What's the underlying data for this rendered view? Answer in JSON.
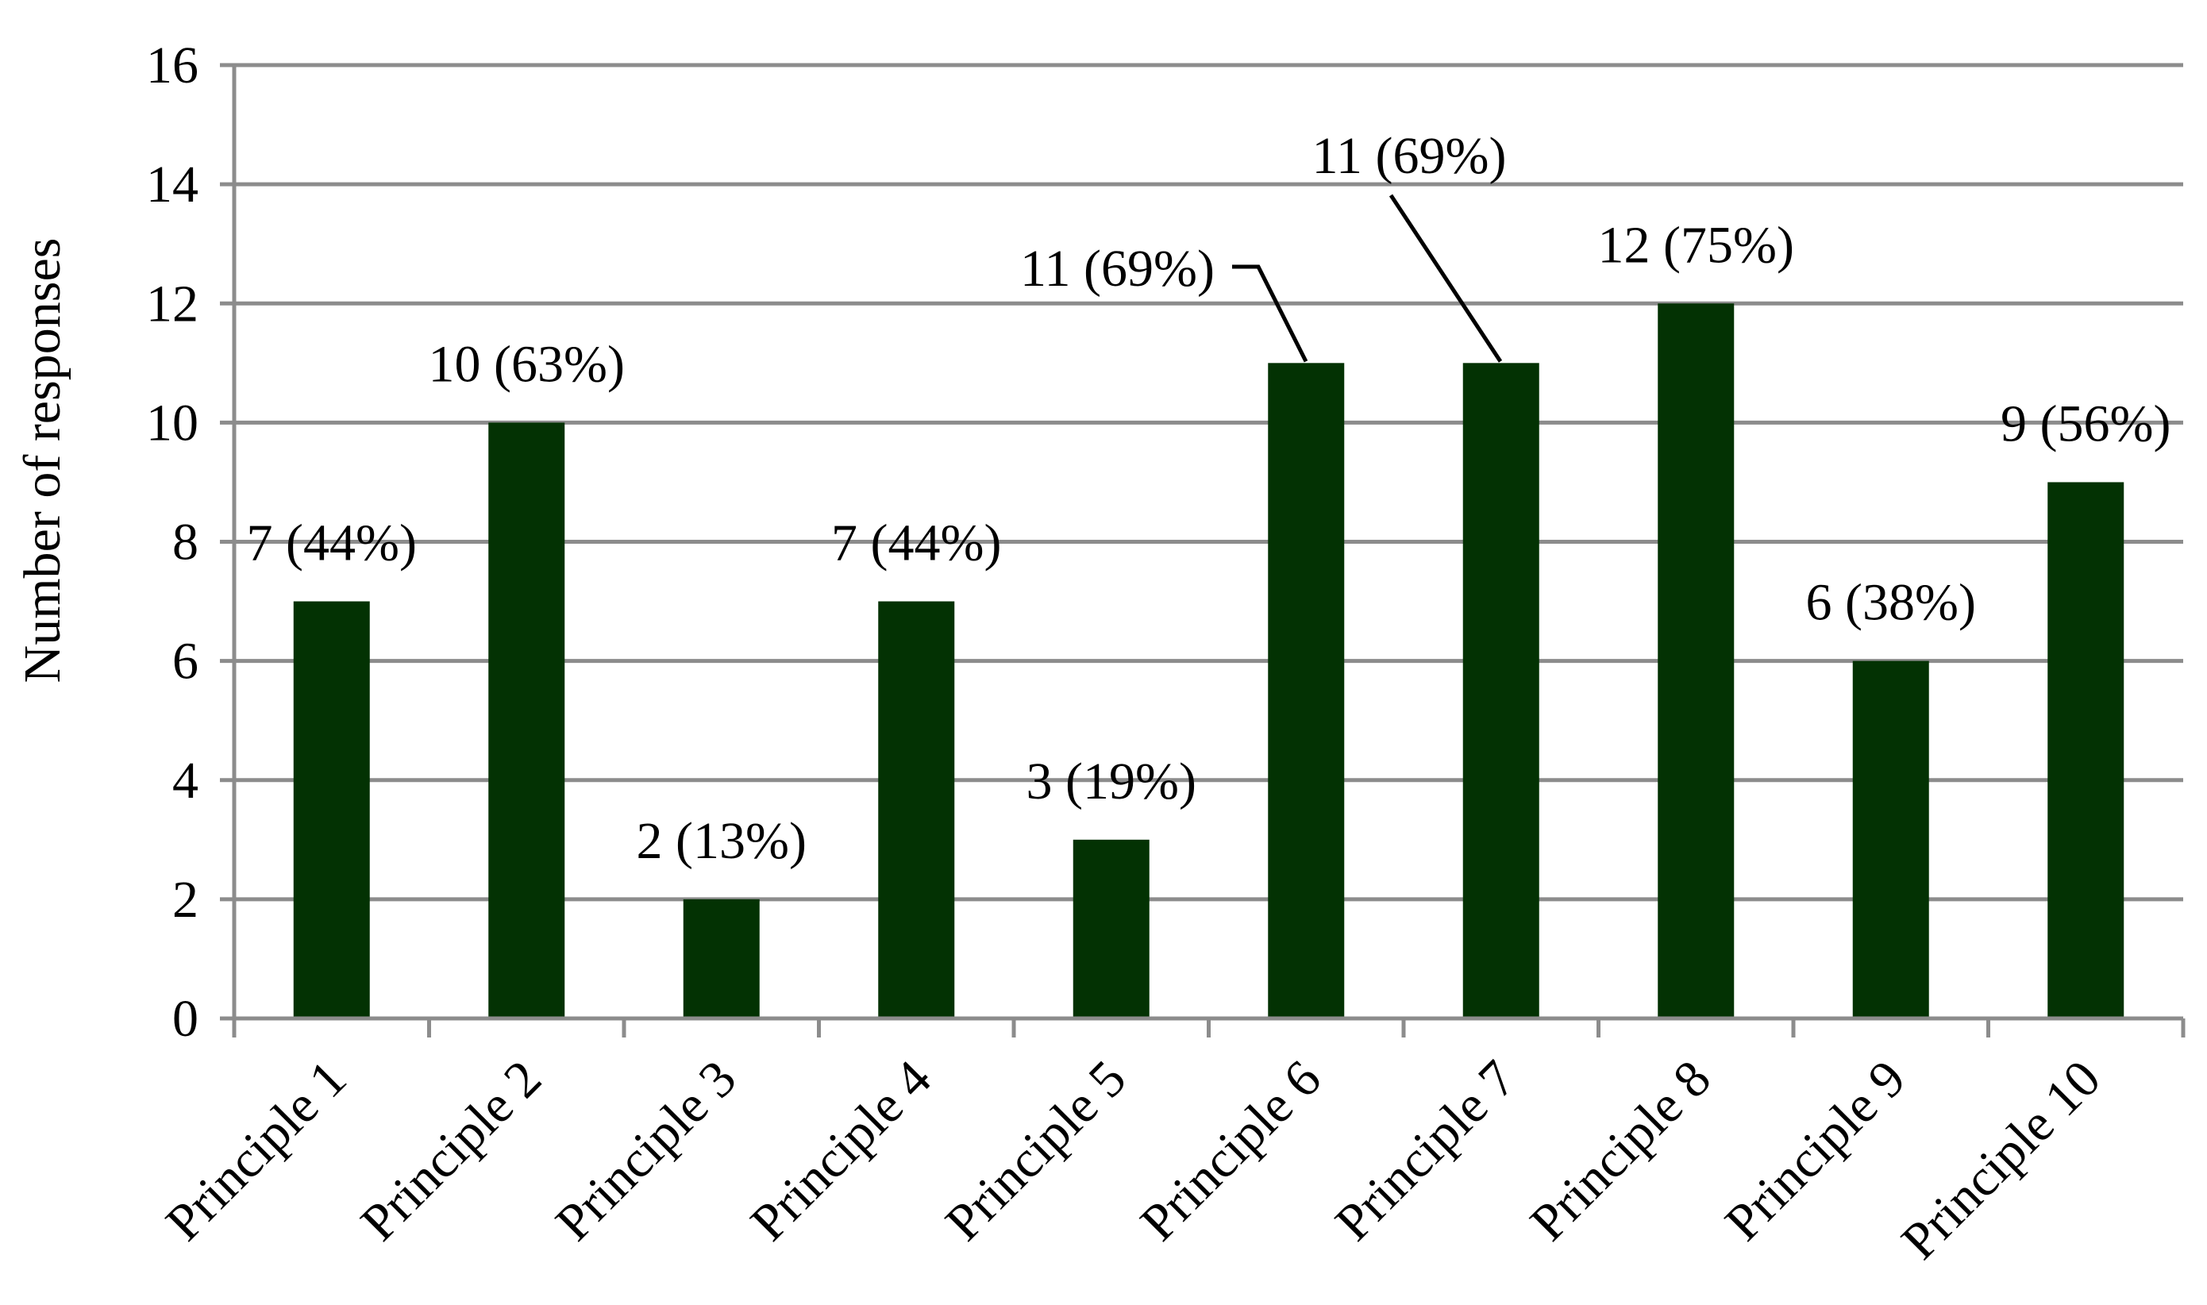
{
  "chart_data": {
    "type": "bar",
    "categories": [
      "Principle 1",
      "Principle 2",
      "Principle 3",
      "Principle 4",
      "Principle 5",
      "Principle 6",
      "Principle 7",
      "Principle 8",
      "Principle 9",
      "Principle 10"
    ],
    "values": [
      7,
      10,
      2,
      7,
      3,
      11,
      11,
      12,
      6,
      9
    ],
    "data_labels": [
      "7 (44%)",
      "10 (63%)",
      "2 (13%)",
      "7 (44%)",
      "3 (19%)",
      "11 (69%)",
      "11 (69%)",
      "12 (75%)",
      "6 (38%)",
      "9 (56%)"
    ],
    "title": "",
    "xlabel": "",
    "ylabel": "Number of responses",
    "ylim": [
      0,
      16
    ],
    "yticks": [
      0,
      2,
      4,
      6,
      8,
      10,
      12,
      14,
      16
    ],
    "grid": true,
    "legend": "none",
    "bar_color": "#033203"
  }
}
